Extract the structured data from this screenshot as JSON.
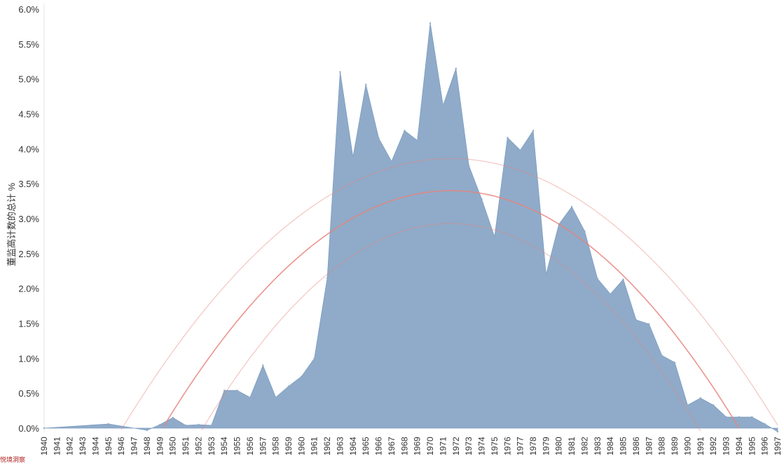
{
  "chart_data": {
    "type": "area",
    "title": "",
    "xlabel": "",
    "ylabel": "董监高计数的总计 %",
    "ylim": [
      0,
      6.0
    ],
    "y_ticks": [
      "0.0%",
      "0.5%",
      "1.0%",
      "1.5%",
      "2.0%",
      "2.5%",
      "3.0%",
      "3.5%",
      "4.0%",
      "4.5%",
      "5.0%",
      "5.5%",
      "6.0%"
    ],
    "x_ticks": [
      "1940",
      "1941",
      "1942",
      "1943",
      "1944",
      "1945",
      "1946",
      "1947",
      "1948",
      "1949",
      "1950",
      "1951",
      "1952",
      "1953",
      "1954",
      "1955",
      "1956",
      "1957",
      "1958",
      "1959",
      "1960",
      "1961",
      "1962",
      "1963",
      "1964",
      "1965",
      "1966",
      "1967",
      "1968",
      "1969",
      "1970",
      "1971",
      "1972",
      "1973",
      "1974",
      "1975",
      "1976",
      "1977",
      "1978",
      "1979",
      "1980",
      "1981",
      "1982",
      "1983",
      "1984",
      "1985",
      "1986",
      "1987",
      "1988",
      "1989",
      "1990",
      "1991",
      "1992",
      "1993",
      "1994",
      "1995",
      "1996",
      "1997"
    ],
    "series": [
      {
        "color": "#8fabc9",
        "x": [
          1940,
          1945,
          1948,
          1949,
          1950,
          1951,
          1952,
          1953,
          1954,
          1955,
          1956,
          1957,
          1958,
          1959,
          1960,
          1961,
          1962,
          1963,
          1964,
          1965,
          1966,
          1967,
          1968,
          1969,
          1970,
          1971,
          1972,
          1973,
          1974,
          1975,
          1976,
          1977,
          1978,
          1979,
          1980,
          1981,
          1982,
          1983,
          1984,
          1985,
          1986,
          1987,
          1988,
          1989,
          1990,
          1991,
          1992,
          1993,
          1994,
          1995,
          1996,
          1997
        ],
        "values": [
          0.0,
          0.06,
          -0.03,
          0.05,
          0.15,
          0.04,
          0.05,
          0.04,
          0.54,
          0.54,
          0.44,
          0.9,
          0.44,
          0.6,
          0.74,
          1.0,
          2.15,
          5.1,
          3.88,
          4.92,
          4.15,
          3.82,
          4.26,
          4.12,
          5.8,
          4.62,
          5.15,
          3.76,
          3.28,
          2.74,
          4.16,
          3.98,
          4.26,
          2.2,
          2.92,
          3.17,
          2.82,
          2.14,
          1.92,
          2.13,
          1.55,
          1.49,
          1.04,
          0.94,
          0.33,
          0.43,
          0.33,
          0.16,
          0.16,
          0.16,
          0.06,
          -0.05
        ]
      }
    ],
    "trend": {
      "type": "polynomial",
      "color": "#e8837b",
      "peak_year": 1971.6,
      "peak_value": 3.4,
      "zero_years": [
        1949.2,
        1994
      ]
    },
    "trend_band": {
      "upper_peak": 3.86,
      "lower_peak": 2.93
    },
    "grid": false
  },
  "watermark": "悦境洞察"
}
